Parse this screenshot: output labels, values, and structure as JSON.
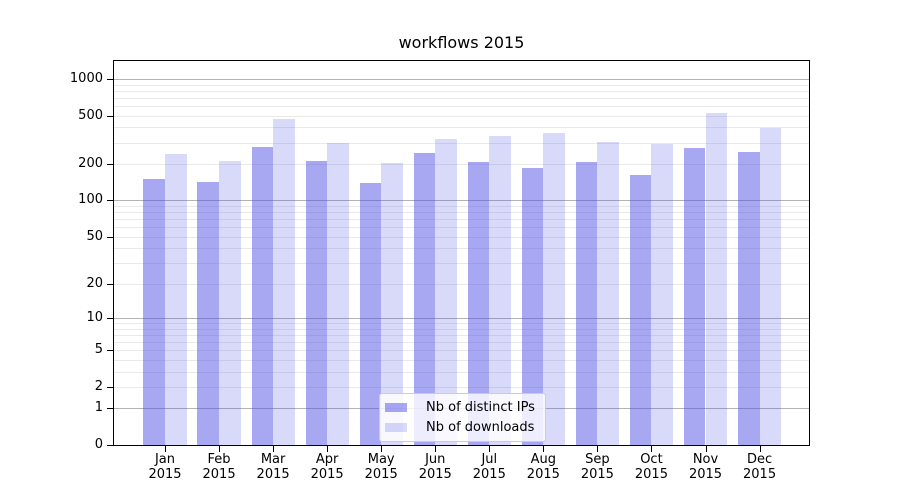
{
  "title": "workflows 2015",
  "chart_data": {
    "type": "bar",
    "title": "workflows 2015",
    "categories": [
      "Jan",
      "Feb",
      "Mar",
      "Apr",
      "May",
      "Jun",
      "Jul",
      "Aug",
      "Sep",
      "Oct",
      "Nov",
      "Dec"
    ],
    "year_label": "2015",
    "series": [
      {
        "name": "Nb of distinct IPs",
        "color": "#5050e6",
        "alpha": 0.5,
        "values": [
          150,
          141,
          276,
          210,
          140,
          248,
          208,
          184,
          209,
          161,
          272,
          253
        ]
      },
      {
        "name": "Nb of downloads",
        "color": "#5050e6",
        "alpha": 0.22,
        "values": [
          243,
          212,
          470,
          298,
          205,
          321,
          342,
          362,
          304,
          291,
          521,
          393
        ]
      }
    ],
    "yscale": "log1p",
    "ylim": [
      0,
      1400
    ],
    "yticks": [
      0,
      1,
      2,
      5,
      10,
      20,
      50,
      100,
      200,
      500,
      1000
    ],
    "major_gridlines": [
      1,
      10,
      100,
      1000
    ],
    "minor_gridlines": [
      2,
      3,
      4,
      5,
      6,
      7,
      8,
      9,
      20,
      30,
      40,
      50,
      60,
      70,
      80,
      90,
      200,
      300,
      400,
      500,
      600,
      700,
      800,
      900
    ],
    "grid_major_color": "#b3b3b3",
    "grid_minor_color": "#e9e9e9",
    "legend_position": "lower center",
    "xlabel": "",
    "ylabel": ""
  }
}
